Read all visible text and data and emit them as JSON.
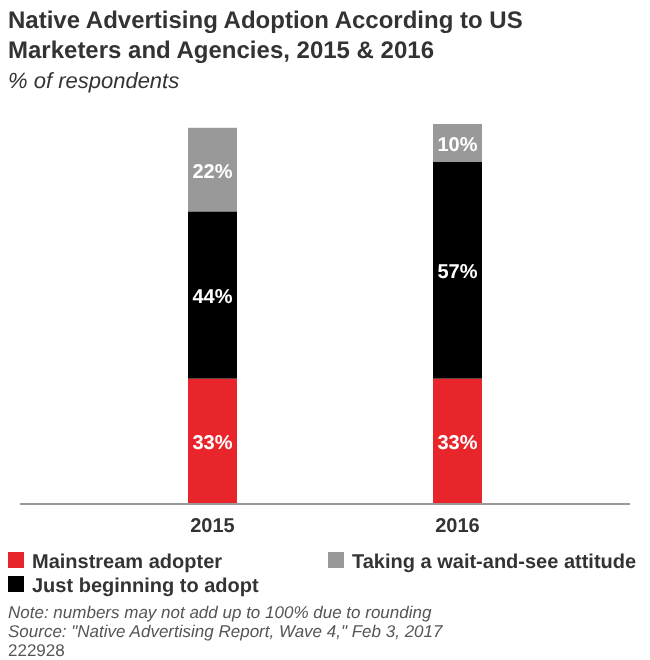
{
  "chart_data": {
    "type": "bar",
    "stacked": true,
    "title": "Native Advertising Adoption According to US Marketers and Agencies, 2015 & 2016",
    "subtitle": "% of respondents",
    "categories": [
      "2015",
      "2016"
    ],
    "series": [
      {
        "name": "Mainstream adopter",
        "color": "#e8252b",
        "values": [
          33,
          33
        ],
        "value_labels": [
          "33%",
          "33%"
        ]
      },
      {
        "name": "Just beginning to adopt",
        "color": "#000000",
        "values": [
          44,
          57
        ],
        "value_labels": [
          "44%",
          "57%"
        ]
      },
      {
        "name": "Taking a wait-and-see attitude",
        "color": "#999999",
        "values": [
          22,
          10
        ],
        "value_labels": [
          "22%",
          "10%"
        ]
      }
    ],
    "legend": "bottom",
    "annotations": [
      "Note: numbers may not add up to 100% due to rounding",
      "Source: \"Native Advertising Report, Wave 4,\" Feb 3, 2017",
      "222928"
    ]
  }
}
